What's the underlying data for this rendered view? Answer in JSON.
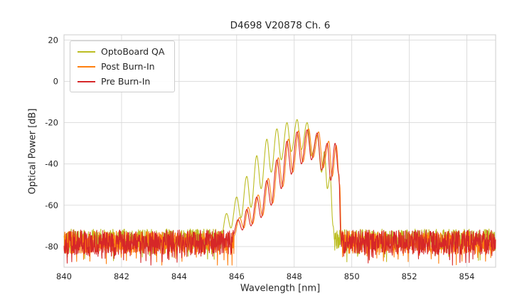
{
  "chart_data": {
    "type": "line",
    "title": "D4698 V20878 Ch. 6",
    "xlabel": "Wavelength [nm]",
    "ylabel": "Optical Power [dB]",
    "xlim": [
      840,
      855
    ],
    "ylim": [
      -90,
      22.5
    ],
    "xticks": [
      840,
      842,
      844,
      846,
      848,
      850,
      852,
      854
    ],
    "yticks": [
      20,
      0,
      -20,
      -40,
      -60,
      -80
    ],
    "grid": true,
    "grid_color": "#d9d9d9",
    "axes_border_color": "#cccccc",
    "legend_position": "upper-left",
    "noise": {
      "seed": 42,
      "step": 0.01,
      "spike_prob": 0.1,
      "spike_depth": 7
    },
    "series": [
      {
        "name": "OptoBoard QA",
        "color": "#bcbd22",
        "noise_mean": -76.5,
        "noise_amp": 10,
        "signal": [
          [
            845.45,
            -76
          ],
          [
            845.65,
            -64
          ],
          [
            845.8,
            -71
          ],
          [
            846.0,
            -56
          ],
          [
            846.15,
            -66
          ],
          [
            846.35,
            -46
          ],
          [
            846.5,
            -61
          ],
          [
            846.7,
            -36
          ],
          [
            846.85,
            -52
          ],
          [
            847.05,
            -28
          ],
          [
            847.2,
            -44
          ],
          [
            847.4,
            -23
          ],
          [
            847.55,
            -38
          ],
          [
            847.75,
            -20
          ],
          [
            847.9,
            -34
          ],
          [
            848.1,
            -18.5
          ],
          [
            848.25,
            -33
          ],
          [
            848.45,
            -20
          ],
          [
            848.6,
            -36
          ],
          [
            848.8,
            -26
          ],
          [
            848.95,
            -44
          ],
          [
            849.05,
            -34
          ],
          [
            849.15,
            -52
          ],
          [
            849.25,
            -46
          ],
          [
            849.35,
            -70
          ],
          [
            849.45,
            -88
          ],
          [
            849.5,
            -80
          ]
        ]
      },
      {
        "name": "Post Burn-In",
        "color": "#ff7f0e",
        "noise_mean": -78,
        "noise_amp": 11,
        "signal": [
          [
            845.9,
            -75
          ],
          [
            846.1,
            -66
          ],
          [
            846.25,
            -71
          ],
          [
            846.4,
            -61
          ],
          [
            846.55,
            -69
          ],
          [
            846.75,
            -55
          ],
          [
            846.9,
            -65
          ],
          [
            847.1,
            -47
          ],
          [
            847.25,
            -59
          ],
          [
            847.45,
            -37
          ],
          [
            847.6,
            -51
          ],
          [
            847.8,
            -28
          ],
          [
            847.95,
            -44
          ],
          [
            848.15,
            -24
          ],
          [
            848.3,
            -39
          ],
          [
            848.5,
            -23
          ],
          [
            848.65,
            -37
          ],
          [
            848.85,
            -24.5
          ],
          [
            849.0,
            -42
          ],
          [
            849.2,
            -29
          ],
          [
            849.32,
            -46
          ],
          [
            849.46,
            -31
          ],
          [
            849.58,
            -50
          ],
          [
            849.64,
            -78
          ],
          [
            849.68,
            -85
          ]
        ]
      },
      {
        "name": "Pre Burn-In",
        "color": "#d62728",
        "noise_mean": -78,
        "noise_amp": 12,
        "signal": [
          [
            845.85,
            -75
          ],
          [
            846.05,
            -67
          ],
          [
            846.2,
            -72
          ],
          [
            846.35,
            -62
          ],
          [
            846.5,
            -70
          ],
          [
            846.7,
            -56
          ],
          [
            846.85,
            -66
          ],
          [
            847.05,
            -48
          ],
          [
            847.2,
            -60
          ],
          [
            847.4,
            -38
          ],
          [
            847.55,
            -52
          ],
          [
            847.75,
            -29
          ],
          [
            847.9,
            -45
          ],
          [
            848.1,
            -24.5
          ],
          [
            848.25,
            -40
          ],
          [
            848.45,
            -23.5
          ],
          [
            848.6,
            -38
          ],
          [
            848.8,
            -25
          ],
          [
            848.95,
            -43
          ],
          [
            849.15,
            -30
          ],
          [
            849.27,
            -48
          ],
          [
            849.42,
            -30
          ],
          [
            849.55,
            -45
          ],
          [
            849.62,
            -75
          ],
          [
            849.66,
            -85
          ]
        ]
      }
    ]
  }
}
